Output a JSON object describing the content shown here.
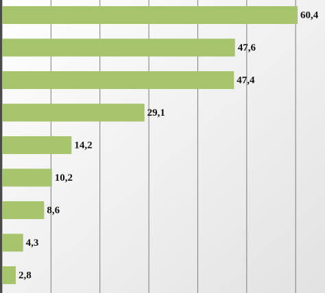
{
  "chart_data": {
    "type": "barh",
    "categories": [
      null,
      null,
      null,
      null,
      null,
      null,
      null,
      null,
      null
    ],
    "values": [
      60.4,
      47.6,
      47.4,
      29.1,
      14.2,
      10.2,
      8.6,
      4.3,
      2.8
    ],
    "value_labels": [
      "60,4",
      "47,6",
      "47,4",
      "29,1",
      "14,2",
      "10,2",
      "8,6",
      "4,3",
      "2,8"
    ],
    "color": "#a6c46c",
    "xlim": [
      0,
      66
    ],
    "xticks": [
      0,
      10,
      20,
      30,
      40,
      50,
      60
    ],
    "grid": true
  }
}
